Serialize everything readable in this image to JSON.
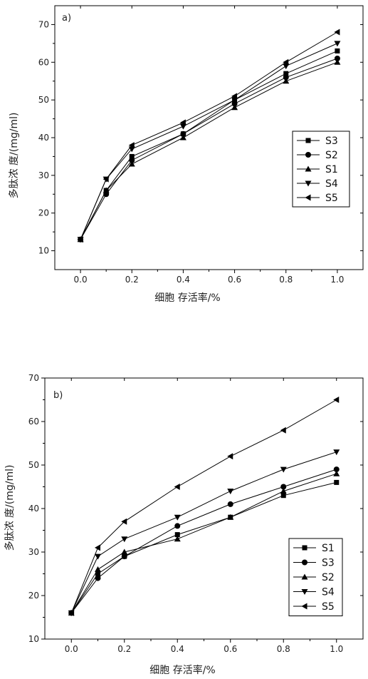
{
  "chart_data": [
    {
      "type": "line",
      "panel_label": "a)",
      "xlabel": "细胞 存活率/%",
      "ylabel": "多肽浓 度/(mg/ml)",
      "xlim": [
        -0.1,
        1.1
      ],
      "ylim": [
        5,
        75
      ],
      "x": [
        0.0,
        0.1,
        0.2,
        0.4,
        0.6,
        0.8,
        1.0
      ],
      "xticks": [
        "0.0",
        "0.2",
        "0.4",
        "0.6",
        "0.8",
        "1.0"
      ],
      "yticks": [
        "10",
        "20",
        "30",
        "40",
        "50",
        "60",
        "70"
      ],
      "legend_position": "right",
      "series": [
        {
          "name": "S3",
          "marker": "square",
          "values": [
            13,
            26,
            35,
            41,
            50,
            57,
            63
          ]
        },
        {
          "name": "S2",
          "marker": "circle",
          "values": [
            13,
            25,
            34,
            41,
            49,
            56,
            61
          ]
        },
        {
          "name": "S1",
          "marker": "triangle-up",
          "values": [
            13,
            26,
            33,
            40,
            48,
            55,
            60
          ]
        },
        {
          "name": "S4",
          "marker": "triangle-down",
          "values": [
            13,
            29,
            37,
            43,
            50,
            59,
            65
          ]
        },
        {
          "name": "S5",
          "marker": "triangle-left",
          "values": [
            13,
            29,
            38,
            44,
            51,
            60,
            68
          ]
        }
      ]
    },
    {
      "type": "line",
      "panel_label": "b)",
      "xlabel": "细胞 存活率/%",
      "ylabel": "多肽浓 度/(mg/ml)",
      "xlim": [
        -0.1,
        1.1
      ],
      "ylim": [
        10,
        70
      ],
      "x": [
        0.0,
        0.1,
        0.2,
        0.4,
        0.6,
        0.8,
        1.0
      ],
      "xticks": [
        "0.0",
        "0.2",
        "0.4",
        "0.6",
        "0.8",
        "1.0"
      ],
      "yticks": [
        "10",
        "20",
        "30",
        "40",
        "50",
        "60",
        "70"
      ],
      "legend_position": "bottom-right",
      "series": [
        {
          "name": "S1",
          "marker": "square",
          "values": [
            16,
            25,
            29,
            34,
            38,
            43,
            46
          ]
        },
        {
          "name": "S3",
          "marker": "circle",
          "values": [
            16,
            24,
            29,
            36,
            41,
            45,
            49
          ]
        },
        {
          "name": "S2",
          "marker": "triangle-up",
          "values": [
            16,
            26,
            30,
            33,
            38,
            44,
            48
          ]
        },
        {
          "name": "S4",
          "marker": "triangle-down",
          "values": [
            16,
            29,
            33,
            38,
            44,
            49,
            53
          ]
        },
        {
          "name": "S5",
          "marker": "triangle-left",
          "values": [
            16,
            31,
            37,
            45,
            52,
            58,
            65
          ]
        }
      ]
    }
  ],
  "colors": {
    "line": "#000000",
    "axis": "#000000"
  }
}
